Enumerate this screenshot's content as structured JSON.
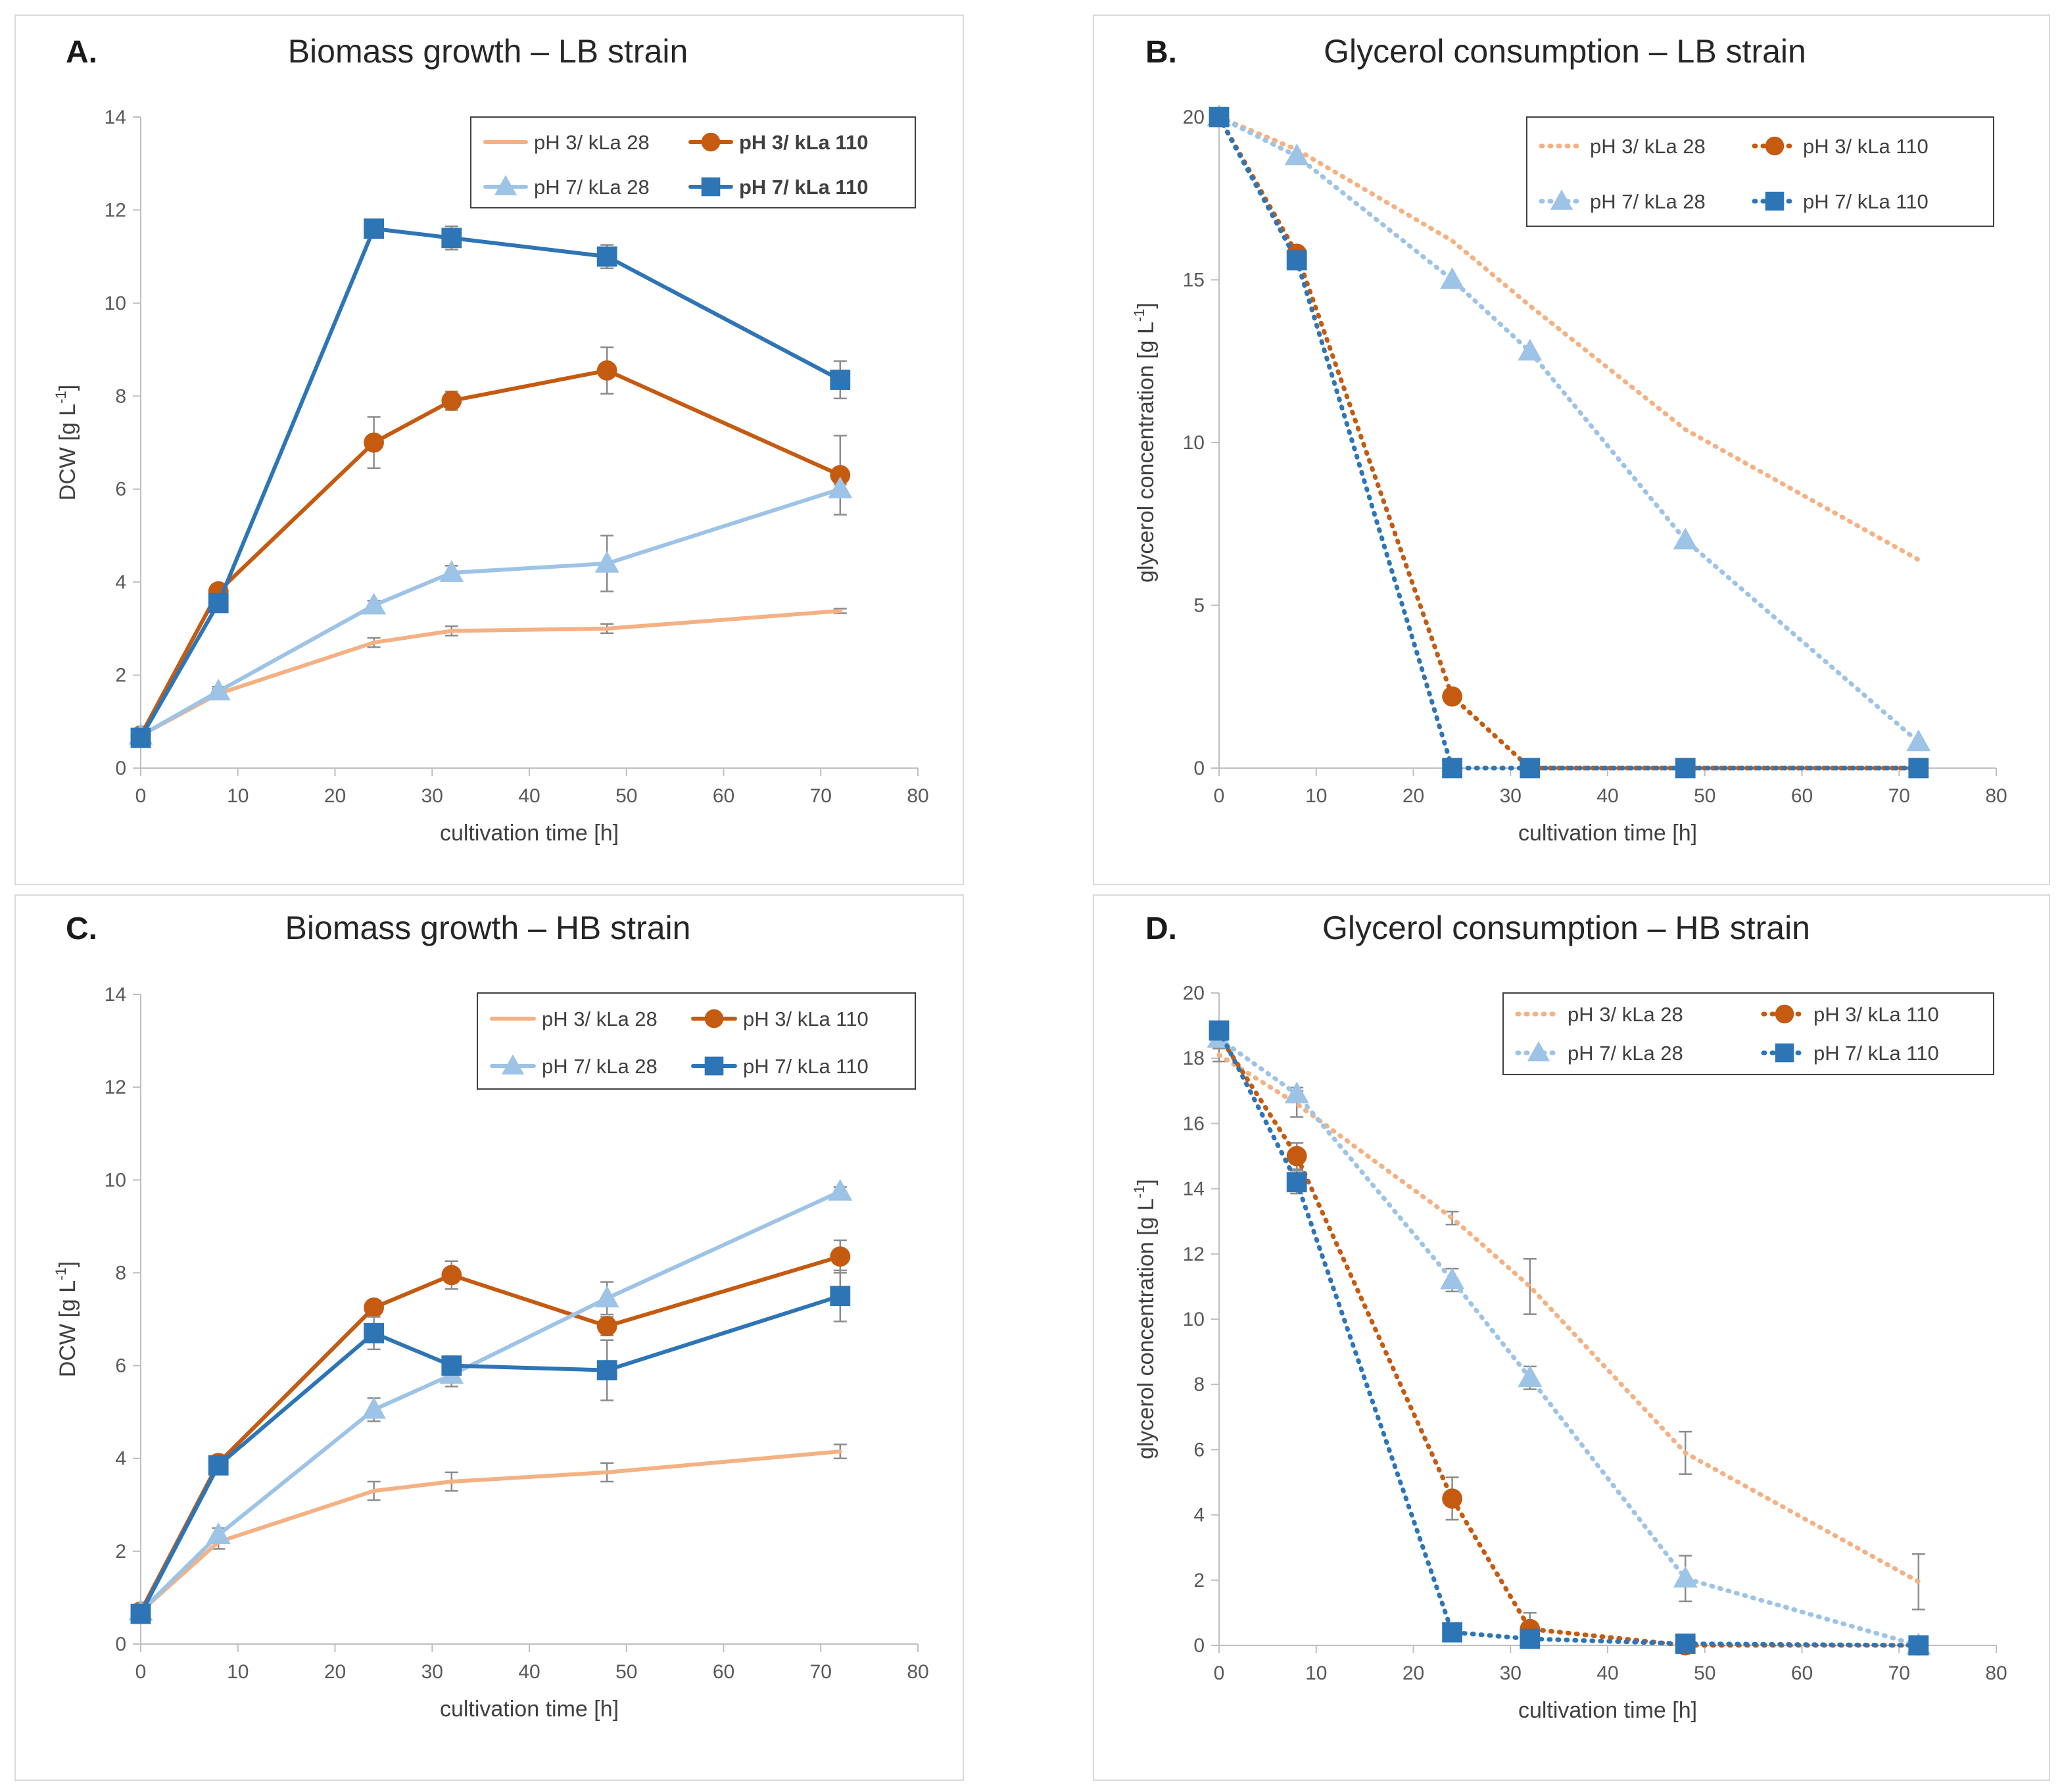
{
  "chart_data": [
    {
      "panel_label": "A.",
      "type": "line",
      "title": "Biomass growth – LB strain",
      "xlabel": "cultivation time [h]",
      "ylabel": "DCW [g L",
      "ylabel_sup": "-1",
      "ylabel_end": "]",
      "xlim": [
        0,
        80
      ],
      "ylim": [
        0,
        14
      ],
      "xticks": [
        "0",
        "10",
        "20",
        "30",
        "40",
        "50",
        "60",
        "70",
        "80"
      ],
      "yticks": [
        "0",
        "2",
        "4",
        "6",
        "8",
        "10",
        "12",
        "14"
      ],
      "legend_layout": "2x2",
      "series": [
        {
          "name": "pH 3/ kLa 28",
          "color": "#f4b183",
          "marker": "none",
          "dash": "solid",
          "bold": false,
          "x": [
            0,
            8,
            24,
            32,
            48,
            72
          ],
          "y": [
            0.7,
            1.6,
            2.7,
            2.95,
            3.0,
            3.38
          ],
          "err": [
            0.05,
            0.1,
            0.1,
            0.1,
            0.1,
            0.05
          ]
        },
        {
          "name": "pH 3/ kLa 110",
          "color": "#c55a11",
          "marker": "circle",
          "dash": "solid",
          "bold": true,
          "x": [
            0,
            8,
            24,
            32,
            48,
            72
          ],
          "y": [
            0.7,
            3.8,
            7.0,
            7.9,
            8.55,
            6.3
          ],
          "err": [
            0.05,
            0.1,
            0.55,
            0.2,
            0.5,
            0.85
          ]
        },
        {
          "name": "pH 7/ kLa 28",
          "color": "#9dc3e6",
          "marker": "triangle",
          "dash": "solid",
          "bold": false,
          "x": [
            0,
            8,
            24,
            32,
            48,
            72
          ],
          "y": [
            0.7,
            1.65,
            3.5,
            4.2,
            4.4,
            6.0
          ],
          "err": [
            0.05,
            0.1,
            0.1,
            0.15,
            0.6,
            0.1
          ]
        },
        {
          "name": "pH 7/ kLa 110",
          "color": "#2e75b6",
          "marker": "square",
          "dash": "solid",
          "bold": true,
          "x": [
            0,
            8,
            24,
            32,
            48,
            72
          ],
          "y": [
            0.65,
            3.55,
            11.6,
            11.4,
            11.0,
            8.35
          ],
          "err": [
            0.05,
            0.1,
            0.1,
            0.25,
            0.25,
            0.4
          ]
        }
      ]
    },
    {
      "panel_label": "B.",
      "type": "line",
      "title": "Glycerol consumption – LB strain",
      "xlabel": "cultivation time [h]",
      "ylabel": "glycerol concentration [g L",
      "ylabel_sup": "-1",
      "ylabel_end": "]",
      "xlim": [
        0,
        80
      ],
      "ylim": [
        0,
        20
      ],
      "xticks": [
        "0",
        "10",
        "20",
        "30",
        "40",
        "50",
        "60",
        "70",
        "80"
      ],
      "yticks": [
        "0",
        "5",
        "10",
        "15",
        "20"
      ],
      "legend_layout": "2x2",
      "series": [
        {
          "name": "pH 3/ kLa 28",
          "color": "#f4b183",
          "marker": "none",
          "dash": "dotted",
          "bold": false,
          "x": [
            0,
            8,
            24,
            32,
            48,
            72
          ],
          "y": [
            20,
            19.0,
            16.2,
            14.2,
            10.4,
            6.4
          ],
          "err": [
            0,
            0,
            0,
            0,
            0,
            0
          ]
        },
        {
          "name": "pH 3/ kLa 110",
          "color": "#c55a11",
          "marker": "circle",
          "dash": "dotted",
          "bold": false,
          "x": [
            0,
            8,
            24,
            32,
            48,
            72
          ],
          "y": [
            20,
            15.8,
            2.2,
            0.0,
            0.0,
            0.0
          ],
          "err": [
            0,
            0,
            0,
            0,
            0,
            0
          ]
        },
        {
          "name": "pH 7/ kLa 28",
          "color": "#9dc3e6",
          "marker": "triangle",
          "dash": "dotted",
          "bold": false,
          "x": [
            0,
            8,
            24,
            32,
            48,
            72
          ],
          "y": [
            20,
            18.8,
            15.0,
            12.8,
            7.0,
            0.8
          ],
          "err": [
            0,
            0,
            0,
            0,
            0,
            0
          ]
        },
        {
          "name": "pH 7/ kLa 110",
          "color": "#2e75b6",
          "marker": "square",
          "dash": "dotted",
          "bold": false,
          "x": [
            0,
            8,
            24,
            32,
            48,
            72
          ],
          "y": [
            20,
            15.6,
            0.0,
            0.0,
            0.0,
            0.0
          ],
          "err": [
            0,
            0,
            0,
            0,
            0,
            0
          ]
        }
      ]
    },
    {
      "panel_label": "C.",
      "type": "line",
      "title": "Biomass growth – HB strain",
      "xlabel": "cultivation time [h]",
      "ylabel": "DCW [g L",
      "ylabel_sup": "-1",
      "ylabel_end": "]",
      "xlim": [
        0,
        80
      ],
      "ylim": [
        0,
        14
      ],
      "xticks": [
        "0",
        "10",
        "20",
        "30",
        "40",
        "50",
        "60",
        "70",
        "80"
      ],
      "yticks": [
        "0",
        "2",
        "4",
        "6",
        "8",
        "10",
        "12",
        "14"
      ],
      "legend_layout": "2x2",
      "series": [
        {
          "name": "pH 3/ kLa 28",
          "color": "#f4b183",
          "marker": "none",
          "dash": "solid",
          "bold": false,
          "x": [
            0,
            8,
            24,
            32,
            48,
            72
          ],
          "y": [
            0.7,
            2.2,
            3.3,
            3.5,
            3.7,
            4.15
          ],
          "err": [
            0.05,
            0.15,
            0.2,
            0.2,
            0.2,
            0.15
          ]
        },
        {
          "name": "pH 3/ kLa 110",
          "color": "#c55a11",
          "marker": "circle",
          "dash": "solid",
          "bold": false,
          "x": [
            0,
            8,
            24,
            32,
            48,
            72
          ],
          "y": [
            0.7,
            3.9,
            7.25,
            7.95,
            6.85,
            8.35
          ],
          "err": [
            0.05,
            0.1,
            0.15,
            0.3,
            0.2,
            0.35
          ]
        },
        {
          "name": "pH 7/ kLa 28",
          "color": "#9dc3e6",
          "marker": "triangle",
          "dash": "solid",
          "bold": false,
          "x": [
            0,
            8,
            24,
            32,
            48,
            72
          ],
          "y": [
            0.7,
            2.35,
            5.05,
            5.8,
            7.45,
            9.75
          ],
          "err": [
            0.05,
            0.15,
            0.25,
            0.25,
            0.35,
            0.1
          ]
        },
        {
          "name": "pH 7/ kLa 110",
          "color": "#2e75b6",
          "marker": "square",
          "dash": "solid",
          "bold": false,
          "x": [
            0,
            8,
            24,
            32,
            48,
            72
          ],
          "y": [
            0.65,
            3.85,
            6.7,
            6.0,
            5.9,
            7.5
          ],
          "err": [
            0.05,
            0.1,
            0.35,
            0.2,
            0.65,
            0.55
          ]
        }
      ]
    },
    {
      "panel_label": "D.",
      "type": "line",
      "title": "Glycerol consumption – HB strain",
      "xlabel": "cultivation time [h]",
      "ylabel": "glycerol concentration [g L",
      "ylabel_sup": "-1",
      "ylabel_end": "]",
      "xlim": [
        0,
        80
      ],
      "ylim": [
        0,
        20
      ],
      "xticks": [
        "0",
        "10",
        "20",
        "30",
        "40",
        "50",
        "60",
        "70",
        "80"
      ],
      "yticks": [
        "0",
        "2",
        "4",
        "6",
        "8",
        "10",
        "12",
        "14",
        "16",
        "18",
        "20"
      ],
      "legend_layout": "2x2",
      "series": [
        {
          "name": "pH 3/ kLa 28",
          "color": "#f4b183",
          "marker": "none",
          "dash": "dotted",
          "bold": false,
          "x": [
            0,
            8,
            24,
            32,
            48,
            72
          ],
          "y": [
            18.1,
            16.6,
            13.1,
            11.0,
            5.9,
            1.95
          ],
          "err": [
            0.2,
            0.4,
            0.2,
            0.85,
            0.65,
            0.85
          ]
        },
        {
          "name": "pH 3/ kLa 110",
          "color": "#c55a11",
          "marker": "circle",
          "dash": "dotted",
          "bold": false,
          "x": [
            0,
            8,
            24,
            32,
            48,
            72
          ],
          "y": [
            18.7,
            15.0,
            4.5,
            0.5,
            0.0,
            0.0
          ],
          "err": [
            0.2,
            0.4,
            0.65,
            0.5,
            0.05,
            0.0
          ]
        },
        {
          "name": "pH 7/ kLa 28",
          "color": "#9dc3e6",
          "marker": "triangle",
          "dash": "dotted",
          "bold": false,
          "x": [
            0,
            8,
            24,
            32,
            48,
            72
          ],
          "y": [
            18.6,
            16.9,
            11.2,
            8.2,
            2.05,
            0.0
          ],
          "err": [
            0.2,
            0.2,
            0.35,
            0.35,
            0.7,
            0.0
          ]
        },
        {
          "name": "pH 7/ kLa 110",
          "color": "#2e75b6",
          "marker": "square",
          "dash": "dotted",
          "bold": false,
          "x": [
            0,
            8,
            24,
            32,
            48,
            72
          ],
          "y": [
            18.85,
            14.2,
            0.4,
            0.2,
            0.05,
            0.0
          ],
          "err": [
            0.1,
            0.35,
            0.1,
            0.1,
            0.05,
            0.0
          ]
        }
      ]
    }
  ]
}
